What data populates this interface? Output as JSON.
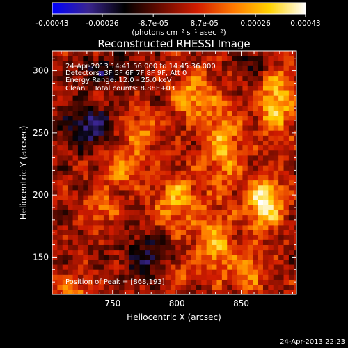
{
  "chart_data": {
    "type": "heatmap",
    "title": "Reconstructed RHESSI Image",
    "xlabel": "Heliocentric X (arcsec)",
    "ylabel": "Heliocentric Y (arcsec)",
    "xlim": [
      703,
      893
    ],
    "ylim": [
      120,
      316
    ],
    "x_ticks": [
      750,
      800,
      850
    ],
    "y_ticks": [
      150,
      200,
      250,
      300
    ],
    "colorbar": {
      "min": -0.00043,
      "max": 0.00043,
      "tick_values": [
        -0.00043,
        -0.00026,
        -8.7e-05,
        8.7e-05,
        0.00026,
        0.00043
      ],
      "tick_labels": [
        "-0.00043",
        "-0.00026",
        "-8.7e-05",
        "8.7e-05",
        "0.00026",
        "0.00043"
      ],
      "unit_label": "(photons cm⁻² s⁻¹ asec⁻²)",
      "colors": [
        "#0000ff",
        "#3a2590",
        "#000000",
        "#6a0b00",
        "#d21c00",
        "#ff7800",
        "#ffd200",
        "#ffffff"
      ]
    },
    "annotations": [
      "24-Apr-2013 14:41:56.000 to 14:45:36.000",
      "Detectors: 3F 5F 6F 7F 8F 9F, Att 0",
      "Energy Range: 12.0 - 25.0 keV",
      "Clean    Total counts: 8.88E+03"
    ],
    "peak_label": "Position of Peak = [868,193]",
    "peak_position": [
      868,
      193
    ],
    "footer_timestamp": "24-Apr-2013 22:23",
    "approximate_features": [
      {
        "x": 868,
        "y": 193,
        "amp": 0.00043,
        "sx": 10,
        "sy": 14
      },
      {
        "x": 877,
        "y": 275,
        "amp": 0.00032,
        "sx": 10,
        "sy": 20
      },
      {
        "x": 836,
        "y": 240,
        "amp": 0.00026,
        "sx": 10,
        "sy": 24
      },
      {
        "x": 812,
        "y": 280,
        "amp": 0.00024,
        "sx": 12,
        "sy": 14
      },
      {
        "x": 800,
        "y": 195,
        "amp": 0.00025,
        "sx": 12,
        "sy": 18
      },
      {
        "x": 770,
        "y": 250,
        "amp": 0.00022,
        "sx": 10,
        "sy": 12
      },
      {
        "x": 758,
        "y": 220,
        "amp": 0.0002,
        "sx": 12,
        "sy": 10
      },
      {
        "x": 740,
        "y": 190,
        "amp": 0.00018,
        "sx": 10,
        "sy": 10
      },
      {
        "x": 830,
        "y": 160,
        "amp": 0.00026,
        "sx": 10,
        "sy": 18
      },
      {
        "x": 855,
        "y": 140,
        "amp": 0.0002,
        "sx": 10,
        "sy": 12
      },
      {
        "x": 720,
        "y": 120,
        "amp": 0.0002,
        "sx": 10,
        "sy": 10
      },
      {
        "x": 800,
        "y": 140,
        "amp": 0.00016,
        "sx": 10,
        "sy": 10
      },
      {
        "x": 730,
        "y": 255,
        "amp": -0.00026,
        "sx": 14,
        "sy": 12
      },
      {
        "x": 780,
        "y": 150,
        "amp": -0.00022,
        "sx": 14,
        "sy": 12
      },
      {
        "x": 745,
        "y": 300,
        "amp": -0.00018,
        "sx": 16,
        "sy": 8
      },
      {
        "x": 860,
        "y": 305,
        "amp": -0.00016,
        "sx": 10,
        "sy": 8
      }
    ]
  }
}
